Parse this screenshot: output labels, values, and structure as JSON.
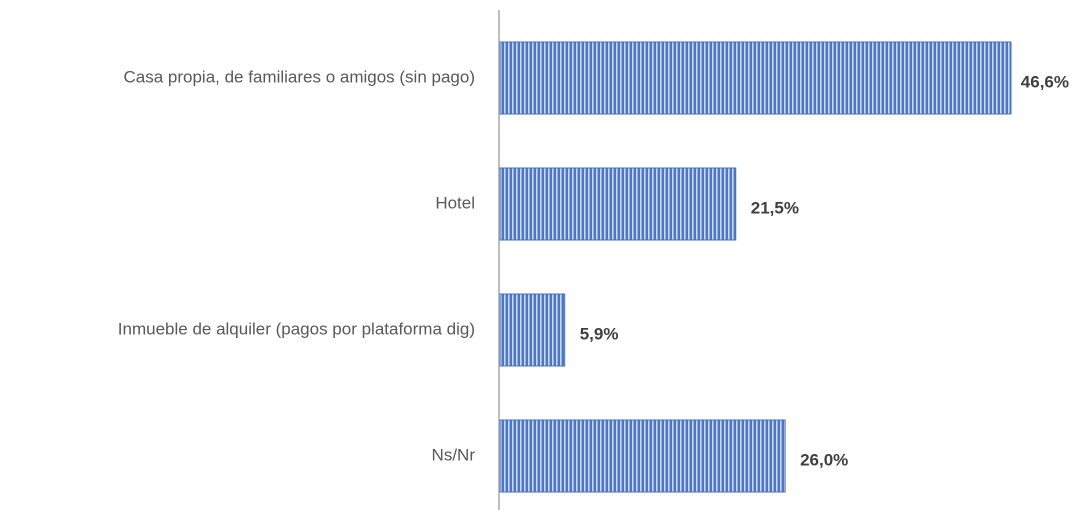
{
  "chart_data": {
    "type": "hbar",
    "categories": [
      "Casa propia, de familiares o amigos (sin pago)",
      "Hotel",
      "Inmueble de alquiler (pagos por plataforma dig)",
      "Ns/Nr"
    ],
    "values": [
      46.6,
      21.5,
      5.9,
      26.0
    ],
    "value_labels": [
      "46,6%",
      "21,5%",
      "5,9%",
      "26,0%"
    ],
    "color": "#4472c4"
  }
}
